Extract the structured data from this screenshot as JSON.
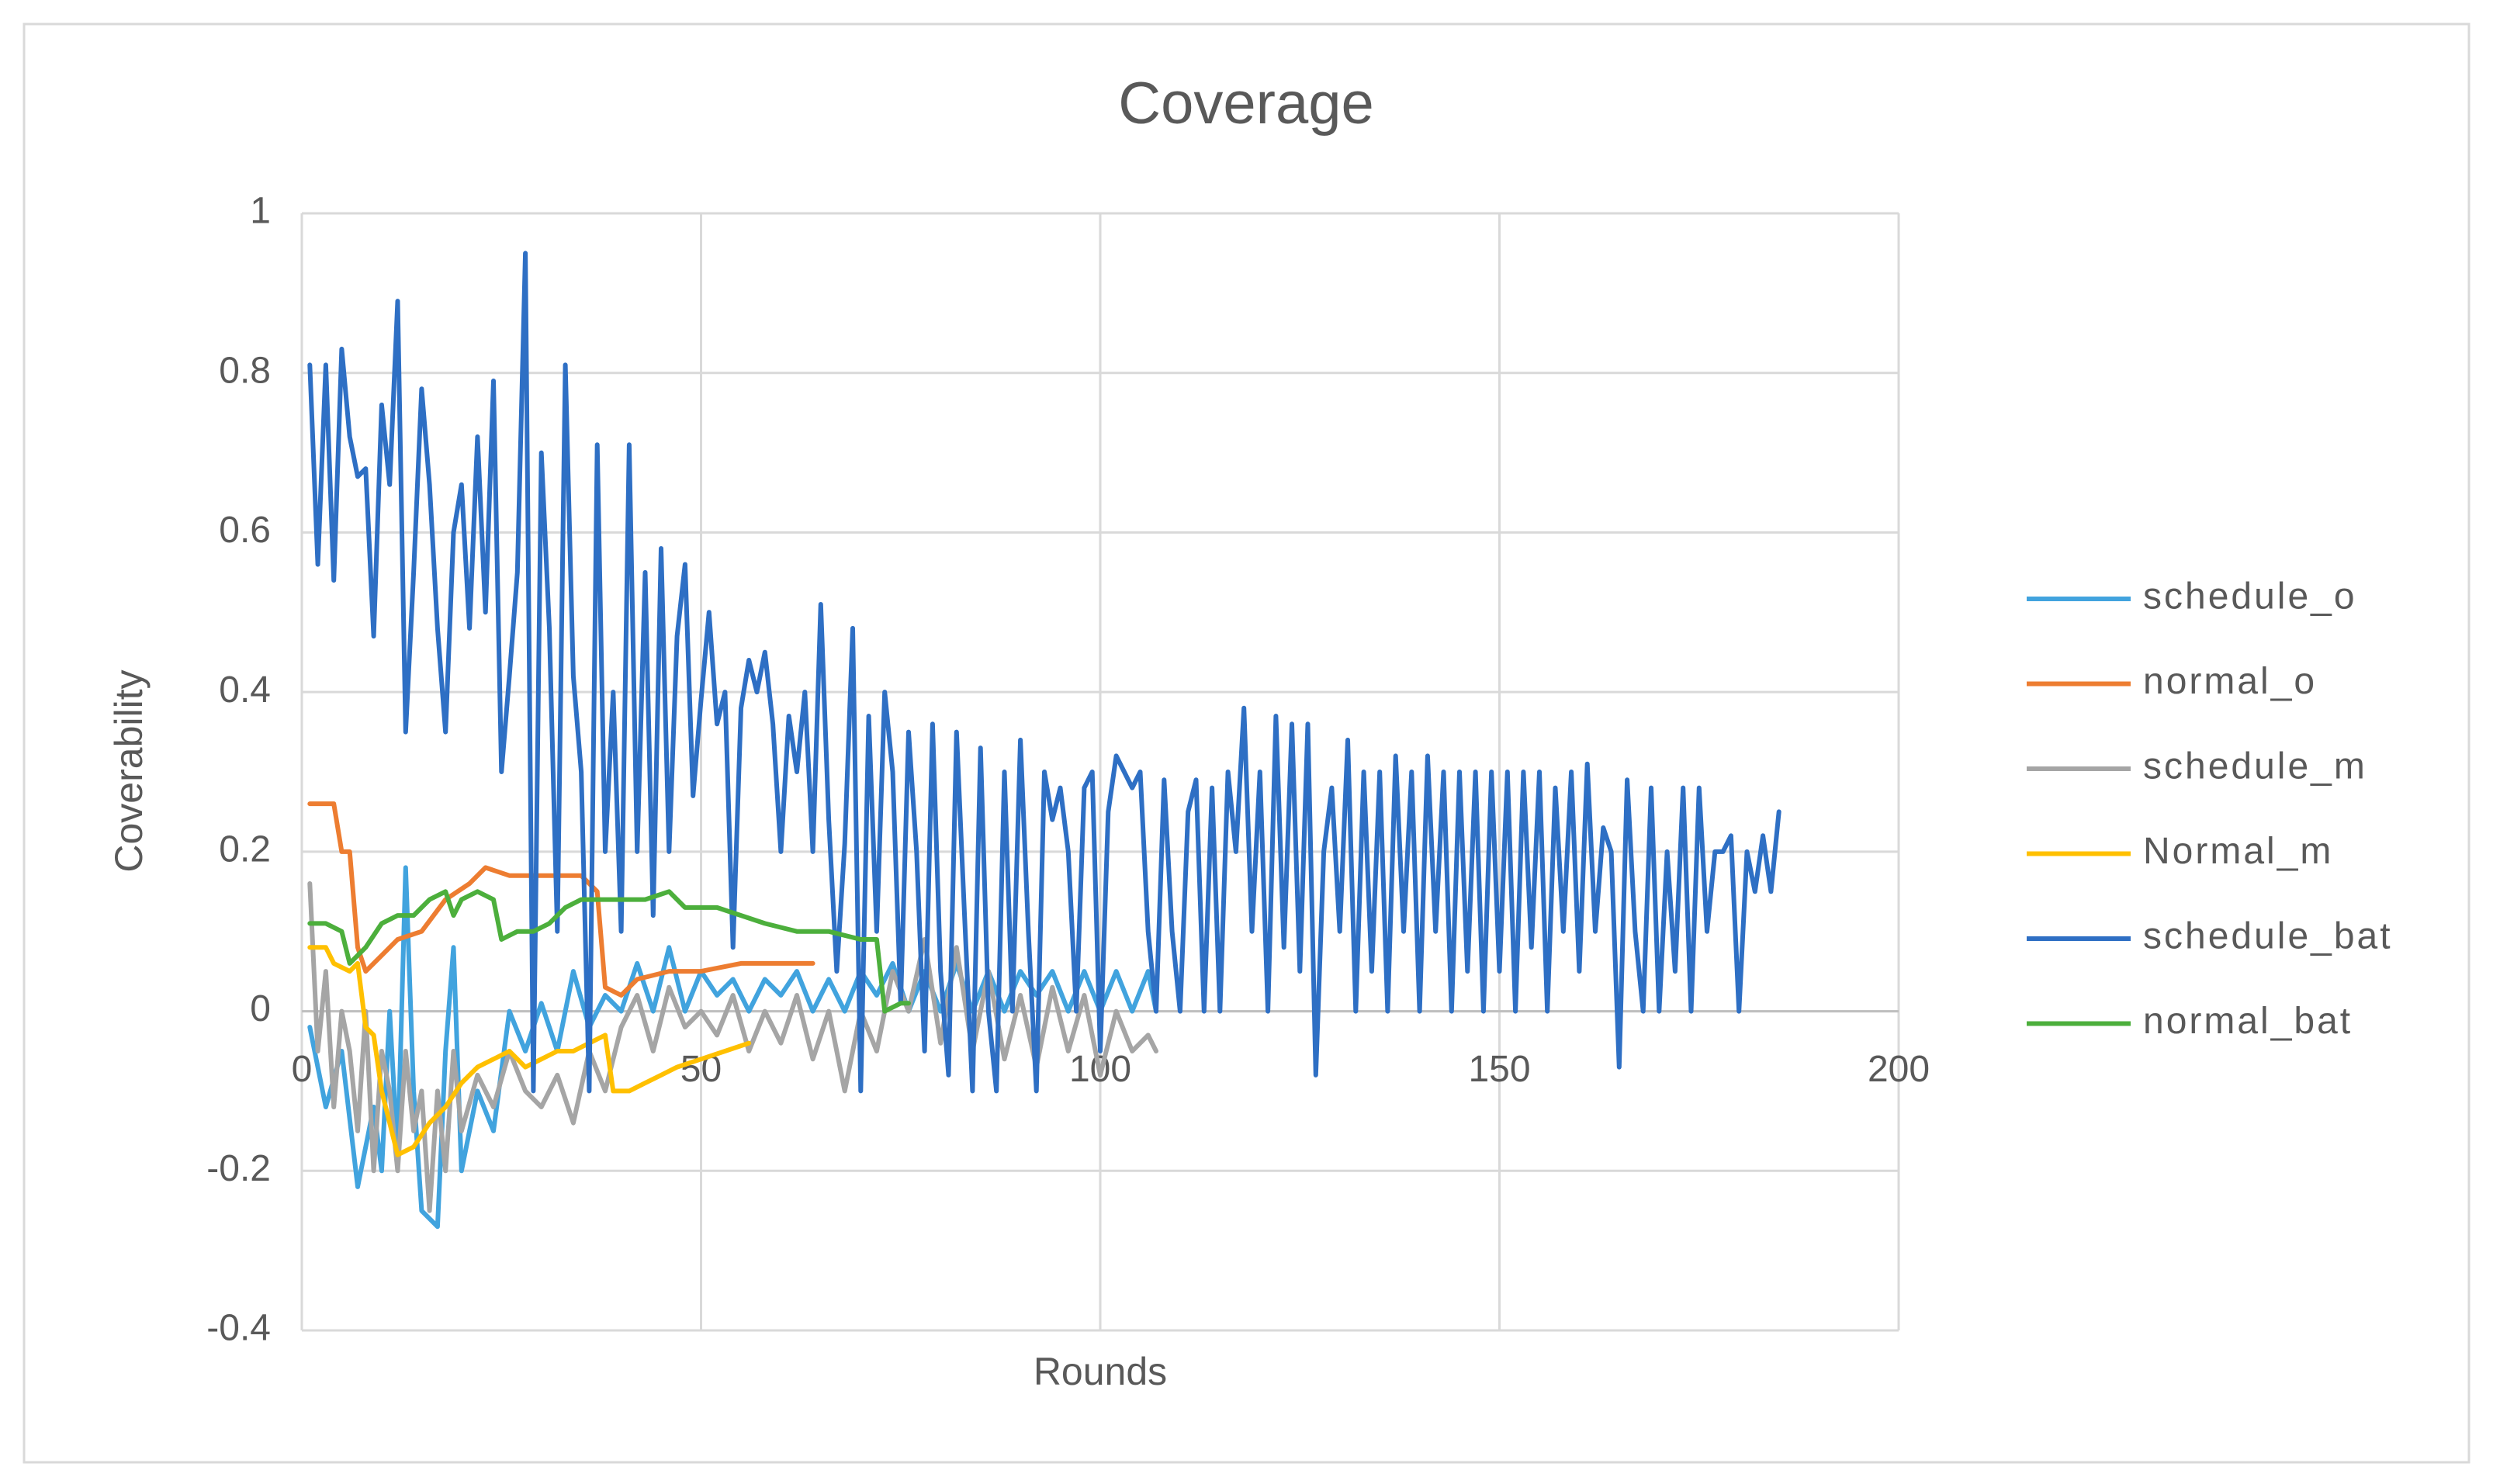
{
  "chart_data": {
    "type": "line",
    "title": "Coverage",
    "xlabel": "Rounds",
    "ylabel": "Coverability",
    "xlim": [
      0,
      200
    ],
    "xticks": [
      0,
      50,
      100,
      150,
      200
    ],
    "ylim": [
      -0.4,
      1
    ],
    "yticks": [
      -0.4,
      -0.2,
      0,
      0.2,
      0.4,
      0.6,
      0.8,
      1
    ],
    "grid": true,
    "legend": "right",
    "series": [
      {
        "name": "schedule_o",
        "color": "#41a3de",
        "x": [
          1,
          3,
          5,
          7,
          9,
          10,
          11,
          12,
          13,
          14,
          15,
          17,
          18,
          19,
          20,
          22,
          24,
          26,
          28,
          30,
          32,
          34,
          36,
          38,
          40,
          42,
          44,
          46,
          48,
          50,
          52,
          54,
          56,
          58,
          60,
          62,
          64,
          66,
          68,
          70,
          72,
          74,
          76,
          78,
          80,
          82,
          84,
          86,
          88,
          90,
          92,
          94,
          96,
          98,
          100,
          102,
          104,
          106,
          107
        ],
        "values": [
          -0.02,
          -0.12,
          -0.05,
          -0.22,
          -0.12,
          -0.2,
          0.0,
          -0.18,
          0.18,
          -0.1,
          -0.25,
          -0.27,
          -0.05,
          0.08,
          -0.2,
          -0.1,
          -0.15,
          0.0,
          -0.05,
          0.01,
          -0.05,
          0.05,
          -0.02,
          0.02,
          0.0,
          0.06,
          0.0,
          0.08,
          0.0,
          0.05,
          0.02,
          0.04,
          0.0,
          0.04,
          0.02,
          0.05,
          0.0,
          0.04,
          0.0,
          0.05,
          0.02,
          0.06,
          0.0,
          0.05,
          0.0,
          0.06,
          0.0,
          0.05,
          0.0,
          0.05,
          0.02,
          0.05,
          0.0,
          0.05,
          0.0,
          0.05,
          0.0,
          0.05,
          0.0
        ]
      },
      {
        "name": "normal_o",
        "color": "#ed7d31",
        "x": [
          1,
          4,
          5,
          6,
          7,
          8,
          10,
          12,
          15,
          18,
          21,
          23,
          26,
          28,
          32,
          35,
          37,
          38,
          40,
          42,
          46,
          50,
          55,
          60,
          64
        ],
        "values": [
          0.26,
          0.26,
          0.2,
          0.2,
          0.08,
          0.05,
          0.07,
          0.09,
          0.1,
          0.14,
          0.16,
          0.18,
          0.17,
          0.17,
          0.17,
          0.17,
          0.15,
          0.03,
          0.02,
          0.04,
          0.05,
          0.05,
          0.06,
          0.06,
          0.06
        ]
      },
      {
        "name": "schedule_m",
        "color": "#a5a5a5",
        "x": [
          1,
          2,
          3,
          4,
          5,
          6,
          7,
          8,
          9,
          10,
          11,
          12,
          13,
          14,
          15,
          16,
          17,
          18,
          19,
          20,
          22,
          24,
          26,
          28,
          30,
          32,
          34,
          36,
          38,
          40,
          42,
          44,
          46,
          48,
          50,
          52,
          54,
          56,
          58,
          60,
          62,
          64,
          66,
          68,
          70,
          72,
          74,
          76,
          78,
          80,
          82,
          84,
          86,
          88,
          90,
          92,
          94,
          96,
          98,
          100,
          102,
          104,
          106,
          107
        ],
        "values": [
          0.16,
          -0.05,
          0.05,
          -0.12,
          0.0,
          -0.05,
          -0.15,
          0.0,
          -0.2,
          -0.05,
          -0.1,
          -0.2,
          -0.05,
          -0.15,
          -0.1,
          -0.25,
          -0.1,
          -0.2,
          -0.05,
          -0.15,
          -0.08,
          -0.12,
          -0.05,
          -0.1,
          -0.12,
          -0.08,
          -0.14,
          -0.05,
          -0.1,
          -0.02,
          0.02,
          -0.05,
          0.03,
          -0.02,
          0.0,
          -0.03,
          0.02,
          -0.05,
          0.0,
          -0.04,
          0.02,
          -0.06,
          0.0,
          -0.1,
          0.0,
          -0.05,
          0.05,
          0.0,
          0.09,
          -0.04,
          0.08,
          -0.05,
          0.05,
          -0.06,
          0.02,
          -0.07,
          0.03,
          -0.05,
          0.02,
          -0.08,
          0.0,
          -0.05,
          -0.03,
          -0.05
        ]
      },
      {
        "name": "Normal_m",
        "color": "#ffc000",
        "x": [
          1,
          3,
          4,
          6,
          7,
          8,
          9,
          10,
          12,
          14,
          16,
          18,
          20,
          22,
          24,
          26,
          28,
          30,
          32,
          34,
          36,
          38,
          39,
          41,
          43,
          45,
          47,
          50,
          53,
          56
        ],
        "values": [
          0.08,
          0.08,
          0.06,
          0.05,
          0.06,
          -0.02,
          -0.03,
          -0.1,
          -0.18,
          -0.17,
          -0.14,
          -0.12,
          -0.09,
          -0.07,
          -0.06,
          -0.05,
          -0.07,
          -0.06,
          -0.05,
          -0.05,
          -0.04,
          -0.03,
          -0.1,
          -0.1,
          -0.09,
          -0.08,
          -0.07,
          -0.06,
          -0.05,
          -0.04
        ]
      },
      {
        "name": "schedule_bat",
        "color": "#2e6fc4",
        "x": [
          1,
          2,
          3,
          4,
          5,
          6,
          7,
          8,
          9,
          10,
          11,
          12,
          13,
          14,
          15,
          16,
          17,
          18,
          19,
          20,
          21,
          22,
          23,
          24,
          25,
          26,
          27,
          28,
          29,
          30,
          31,
          32,
          33,
          34,
          35,
          36,
          37,
          38,
          39,
          40,
          41,
          42,
          43,
          44,
          45,
          46,
          47,
          48,
          49,
          50,
          51,
          52,
          53,
          54,
          55,
          56,
          57,
          58,
          59,
          60,
          61,
          62,
          63,
          64,
          65,
          66,
          67,
          68,
          69,
          70,
          71,
          72,
          73,
          74,
          75,
          76,
          77,
          78,
          79,
          80,
          81,
          82,
          83,
          84,
          85,
          86,
          87,
          88,
          89,
          90,
          91,
          92,
          93,
          94,
          95,
          96,
          97,
          98,
          99,
          100,
          101,
          102,
          103,
          104,
          105,
          106,
          107,
          108,
          109,
          110,
          111,
          112,
          113,
          114,
          115,
          116,
          117,
          118,
          119,
          120,
          121,
          122,
          123,
          124,
          125,
          126,
          127,
          128,
          129,
          130,
          131,
          132,
          133,
          134,
          135,
          136,
          137,
          138,
          139,
          140,
          141,
          142,
          143,
          144,
          145,
          146,
          147,
          148,
          149,
          150,
          151,
          152,
          153,
          154,
          155,
          156,
          157,
          158,
          159,
          160,
          161,
          162,
          163,
          164,
          165,
          166,
          167,
          168,
          169,
          170,
          171,
          172,
          173,
          174,
          175,
          176,
          177,
          178,
          179,
          180,
          181,
          182,
          183,
          184,
          185
        ],
        "values": [
          0.81,
          0.56,
          0.81,
          0.54,
          0.83,
          0.72,
          0.67,
          0.68,
          0.47,
          0.76,
          0.66,
          0.89,
          0.35,
          0.55,
          0.78,
          0.66,
          0.48,
          0.35,
          0.6,
          0.66,
          0.48,
          0.72,
          0.5,
          0.79,
          0.3,
          0.42,
          0.55,
          0.95,
          -0.1,
          0.7,
          0.48,
          0.1,
          0.81,
          0.42,
          0.3,
          -0.1,
          0.71,
          0.2,
          0.4,
          0.1,
          0.71,
          0.2,
          0.55,
          0.12,
          0.58,
          0.2,
          0.47,
          0.56,
          0.27,
          0.39,
          0.5,
          0.36,
          0.4,
          0.08,
          0.38,
          0.44,
          0.4,
          0.45,
          0.36,
          0.2,
          0.37,
          0.3,
          0.4,
          0.2,
          0.51,
          0.24,
          0.05,
          0.21,
          0.48,
          -0.1,
          0.37,
          0.1,
          0.4,
          0.3,
          0.01,
          0.35,
          0.2,
          -0.05,
          0.36,
          0.05,
          -0.08,
          0.35,
          0.12,
          -0.1,
          0.33,
          0.0,
          -0.1,
          0.3,
          0.0,
          0.34,
          0.1,
          -0.1,
          0.3,
          0.24,
          0.28,
          0.2,
          0.0,
          0.28,
          0.3,
          -0.05,
          0.25,
          0.32,
          0.3,
          0.28,
          0.3,
          0.1,
          0.0,
          0.29,
          0.1,
          0.0,
          0.25,
          0.29,
          0.0,
          0.28,
          0.0,
          0.3,
          0.2,
          0.38,
          0.1,
          0.3,
          0.0,
          0.37,
          0.08,
          0.36,
          0.05,
          0.36,
          -0.08,
          0.2,
          0.28,
          0.1,
          0.34,
          0.0,
          0.3,
          0.05,
          0.3,
          0.0,
          0.32,
          0.1,
          0.3,
          0.0,
          0.32,
          0.1,
          0.3,
          0.0,
          0.3,
          0.05,
          0.3,
          0.0,
          0.3,
          0.05,
          0.3,
          0.0,
          0.3,
          0.08,
          0.3,
          0.0,
          0.28,
          0.1,
          0.3,
          0.05,
          0.31,
          0.1,
          0.23,
          0.2,
          -0.07,
          0.29,
          0.1,
          0.0,
          0.28,
          0.0,
          0.2,
          0.05,
          0.28,
          0.0,
          0.28,
          0.1,
          0.2,
          0.2,
          0.22,
          0.0,
          0.2,
          0.15,
          0.22,
          0.15,
          0.25
        ]
      },
      {
        "name": "normal_bat",
        "color": "#4caf3c",
        "x": [
          1,
          3,
          5,
          6,
          8,
          10,
          12,
          14,
          16,
          18,
          19,
          20,
          22,
          24,
          25,
          27,
          29,
          31,
          33,
          35,
          37,
          40,
          43,
          46,
          48,
          52,
          55,
          58,
          62,
          66,
          70,
          72,
          73,
          75,
          76
        ],
        "values": [
          0.11,
          0.11,
          0.1,
          0.06,
          0.08,
          0.11,
          0.12,
          0.12,
          0.14,
          0.15,
          0.12,
          0.14,
          0.15,
          0.14,
          0.09,
          0.1,
          0.1,
          0.11,
          0.13,
          0.14,
          0.14,
          0.14,
          0.14,
          0.15,
          0.13,
          0.13,
          0.12,
          0.11,
          0.1,
          0.1,
          0.09,
          0.09,
          0.0,
          0.01,
          0.01
        ]
      }
    ]
  }
}
